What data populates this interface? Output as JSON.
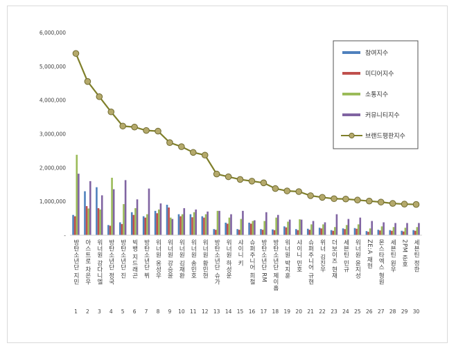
{
  "chart_data": {
    "type": "bar",
    "title": "",
    "xlabel": "",
    "ylabel": "",
    "ylim": [
      0,
      6000000
    ],
    "yticks": [
      "-",
      "1,000,000",
      "2,000,000",
      "3,000,000",
      "4,000,000",
      "5,000,000",
      "6,000,000"
    ],
    "grid": false,
    "legend_position": "top-right",
    "categories": [
      "1",
      "2",
      "3",
      "4",
      "5",
      "6",
      "7",
      "8",
      "9",
      "10",
      "11",
      "12",
      "13",
      "14",
      "15",
      "16",
      "17",
      "18",
      "19",
      "20",
      "21",
      "22",
      "23",
      "24",
      "25",
      "26",
      "27",
      "28",
      "29",
      "30"
    ],
    "names": [
      "방탄소년단 지민",
      "아스트로 차은우",
      "워너원 강다니엘",
      "방탄소년단 정국",
      "방탄소년단 진",
      "빅뱅 지드래곤",
      "방탄소년단 뷔",
      "워너원 옹성우",
      "워너원 강승윤",
      "워너원 김재환",
      "워너원 송민호",
      "워너원 황민현",
      "방탄소년단 슈가",
      "워너원 하성운",
      "샤이니 키",
      "슈퍼주니어 희철",
      "방탄소년단 RM",
      "방탄소년단 제이홉",
      "워너원 박지훈",
      "샤이니 민호",
      "슈퍼주니어 규현",
      "위너 김진우",
      "더보이즈 현재",
      "세븐틴 민규",
      "워너원 윤지성",
      "ZE:A 재현",
      "몬스타엑스 형원",
      "세븐틴 원우",
      "2PM 준호",
      "세븐틴 정한"
    ],
    "series": [
      {
        "name": "참여지수",
        "color": "#4f81bd",
        "values": [
          600000,
          1300000,
          1420000,
          300000,
          380000,
          680000,
          560000,
          720000,
          900000,
          620000,
          620000,
          560000,
          180000,
          370000,
          180000,
          370000,
          180000,
          170000,
          260000,
          180000,
          190000,
          220000,
          150000,
          200000,
          210000,
          120000,
          160000,
          150000,
          130000,
          150000
        ]
      },
      {
        "name": "미디어지수",
        "color": "#c0504d",
        "values": [
          560000,
          860000,
          800000,
          280000,
          330000,
          600000,
          520000,
          650000,
          820000,
          560000,
          530000,
          520000,
          160000,
          340000,
          160000,
          340000,
          160000,
          150000,
          230000,
          150000,
          160000,
          200000,
          130000,
          180000,
          190000,
          100000,
          140000,
          130000,
          110000,
          130000
        ]
      },
      {
        "name": "소통지수",
        "color": "#9bbb59",
        "values": [
          2380000,
          790000,
          760000,
          1700000,
          920000,
          800000,
          620000,
          760000,
          520000,
          620000,
          680000,
          620000,
          720000,
          520000,
          480000,
          420000,
          420000,
          520000,
          400000,
          470000,
          320000,
          320000,
          240000,
          300000,
          320000,
          200000,
          260000,
          240000,
          220000,
          240000
        ]
      },
      {
        "name": "커뮤니티지수",
        "color": "#8064a2",
        "values": [
          1820000,
          1600000,
          1180000,
          1360000,
          1630000,
          1060000,
          1380000,
          940000,
          480000,
          800000,
          760000,
          700000,
          720000,
          620000,
          720000,
          440000,
          680000,
          600000,
          460000,
          460000,
          420000,
          380000,
          620000,
          480000,
          520000,
          420000,
          380000,
          360000,
          360000,
          360000
        ]
      }
    ],
    "line": {
      "name": "브랜드평판지수",
      "color": "#7f7f2a",
      "values": [
        5380000,
        4550000,
        4100000,
        3650000,
        3230000,
        3200000,
        3100000,
        3080000,
        2740000,
        2620000,
        2450000,
        2370000,
        1810000,
        1730000,
        1650000,
        1600000,
        1550000,
        1380000,
        1310000,
        1290000,
        1170000,
        1120000,
        1080000,
        1070000,
        1040000,
        1010000,
        980000,
        940000,
        920000,
        910000
      ]
    }
  }
}
